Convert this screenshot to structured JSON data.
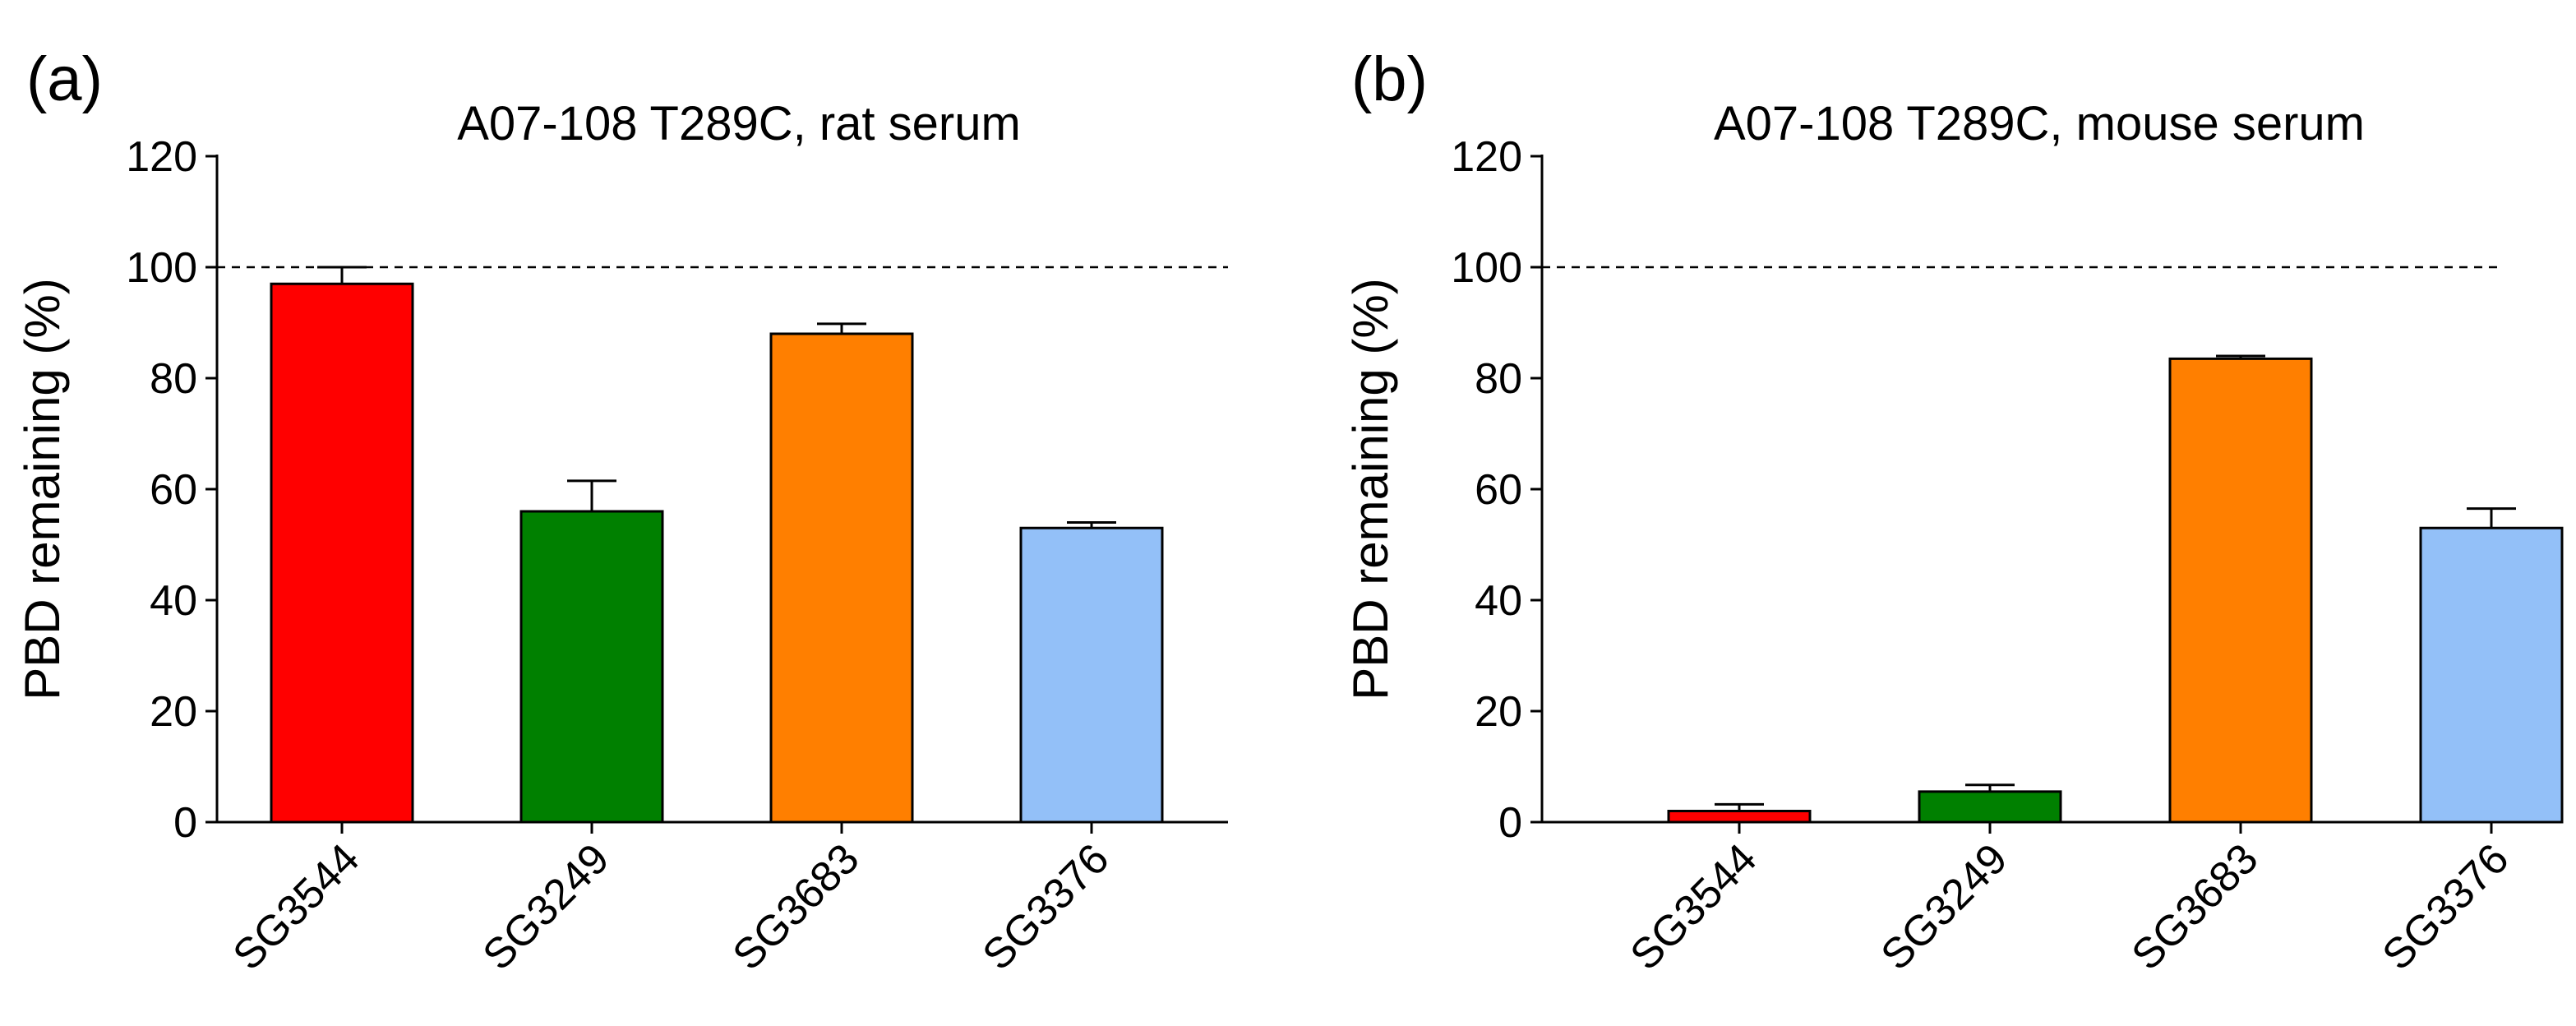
{
  "chart_data": [
    {
      "type": "bar",
      "panel_label": "(a)",
      "title": "A07-108 T289C, rat serum",
      "ylabel": "PBD remaining (%)",
      "xlabel": "",
      "ylim": [
        0,
        120
      ],
      "yticks": [
        0,
        20,
        40,
        60,
        80,
        100,
        120
      ],
      "reference_line": 100,
      "categories": [
        "SG3544",
        "SG3249",
        "SG3683",
        "SG3376"
      ],
      "values": [
        97,
        56,
        88,
        53
      ],
      "error": [
        3,
        5.5,
        1.8,
        1
      ],
      "colors": [
        "#ff0000",
        "#008000",
        "#ff7f00",
        "#93c0f8"
      ]
    },
    {
      "type": "bar",
      "panel_label": "(b)",
      "title": "A07-108 T289C, mouse serum",
      "ylabel": "PBD remaining (%)",
      "xlabel": "",
      "ylim": [
        0,
        120
      ],
      "yticks": [
        0,
        20,
        40,
        60,
        80,
        100,
        120
      ],
      "reference_line": 100,
      "categories": [
        "SG3544",
        "SG3249",
        "SG3683",
        "SG3376"
      ],
      "values": [
        2,
        5.5,
        83.5,
        53
      ],
      "error": [
        1.2,
        1.2,
        0.5,
        3.5
      ],
      "colors": [
        "#ff0000",
        "#008000",
        "#ff7f00",
        "#93c0f8"
      ]
    }
  ]
}
